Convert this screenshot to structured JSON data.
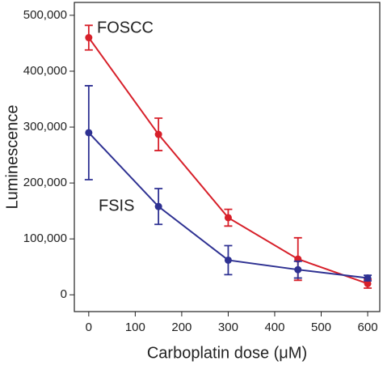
{
  "chart_data": {
    "type": "line",
    "x_label": "Carboplatin dose (μM)",
    "y_label": "Luminescence",
    "x": [
      0,
      150,
      300,
      450,
      600
    ],
    "series": [
      {
        "name": "FOSCC",
        "color": "#d7202a",
        "values": [
          460000,
          287000,
          138000,
          64000,
          20000
        ],
        "errors": [
          22000,
          29000,
          15000,
          38000,
          8000
        ]
      },
      {
        "name": "FSIS",
        "color": "#2e3192",
        "values": [
          290000,
          158000,
          62000,
          45000,
          30000
        ],
        "errors": [
          84000,
          32000,
          26000,
          15000,
          5000
        ]
      }
    ],
    "xlim": [
      -31,
      626
    ],
    "xticks": [
      0,
      100,
      200,
      300,
      400,
      500,
      600
    ],
    "ylim": [
      -30000,
      523000
    ],
    "yticks": [
      0,
      {
        "value": 100000,
        "label": "100,000"
      },
      {
        "value": 200000,
        "label": "200,000"
      },
      {
        "value": 300000,
        "label": "300,000"
      },
      {
        "value": 400000,
        "label": "400,000"
      },
      {
        "value": 500000,
        "label": "500,000"
      }
    ]
  }
}
